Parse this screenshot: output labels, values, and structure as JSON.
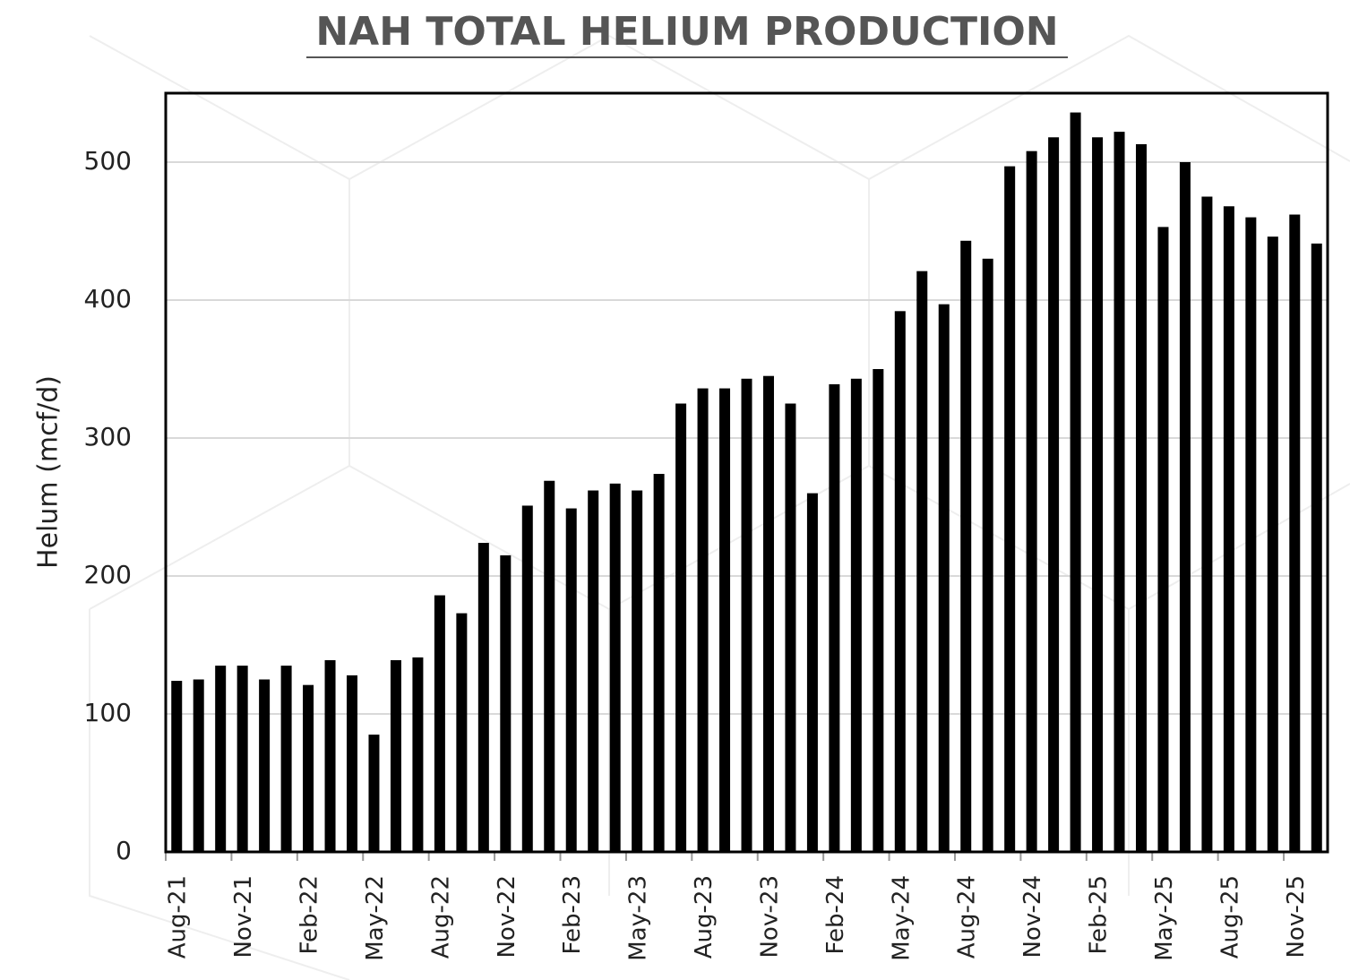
{
  "chart_data": {
    "type": "bar",
    "title": "NAH TOTAL HELIUM PRODUCTION",
    "y_label": "Helum (mcf/d)",
    "categories": [
      "Aug-21",
      null,
      null,
      "Nov-21",
      null,
      null,
      "Feb-22",
      null,
      null,
      "May-22",
      null,
      null,
      "Aug-22",
      null,
      null,
      "Nov-22",
      null,
      null,
      "Feb-23",
      null,
      null,
      "May-23",
      null,
      null,
      "Aug-23",
      null,
      null,
      "Nov-23",
      null,
      null,
      "Feb-24",
      null,
      null,
      "May-24",
      null,
      null,
      "Aug-24",
      null,
      null,
      "Nov-24",
      null,
      null,
      "Feb-25",
      null,
      null,
      "May-25",
      null,
      null,
      "Aug-25",
      null,
      null,
      "Nov-25",
      null
    ],
    "values": [
      124,
      125,
      135,
      135,
      125,
      135,
      121,
      139,
      128,
      85,
      139,
      141,
      186,
      173,
      224,
      215,
      251,
      269,
      249,
      262,
      267,
      262,
      274,
      325,
      336,
      336,
      343,
      345,
      325,
      260,
      339,
      343,
      350,
      392,
      421,
      397,
      443,
      430,
      497,
      508,
      518,
      536,
      518,
      522,
      513,
      453,
      500,
      475,
      468,
      460,
      446,
      462,
      441
    ],
    "color": "#000000",
    "ylim": [
      0,
      550
    ],
    "yticks": [
      0,
      100,
      200,
      300,
      400,
      500
    ],
    "grid": true
  }
}
